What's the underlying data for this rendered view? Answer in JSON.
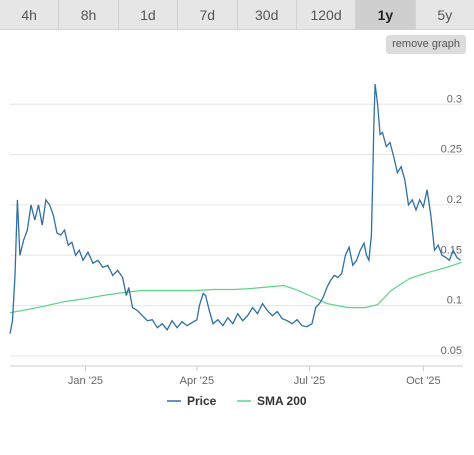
{
  "tabs": {
    "items": [
      {
        "label": "4h"
      },
      {
        "label": "8h"
      },
      {
        "label": "1d"
      },
      {
        "label": "7d"
      },
      {
        "label": "30d"
      },
      {
        "label": "120d"
      },
      {
        "label": "1y"
      },
      {
        "label": "5y"
      }
    ],
    "active": "1y"
  },
  "remove_graph_label": "remove graph",
  "colors": {
    "price": "#2f6fa5",
    "sma": "#5ed38a"
  },
  "chart_data": {
    "type": "line",
    "ylim": [
      0.04,
      0.34
    ],
    "yticks": [
      0.05,
      0.1,
      0.15,
      0.2,
      0.25,
      0.3
    ],
    "ytick_labels": [
      "0.05",
      "0.1",
      "0.15",
      "0.2",
      "0.25",
      "0.3"
    ],
    "xlim": [
      "2024-11-01",
      "2025-11-02"
    ],
    "xticks": [
      {
        "date": "2025-01-01",
        "label": "Jan '25"
      },
      {
        "date": "2025-04-01",
        "label": "Apr '25"
      },
      {
        "date": "2025-07-01",
        "label": "Jul '25"
      },
      {
        "date": "2025-10-01",
        "label": "Oct '25"
      }
    ],
    "grid": true,
    "legend": "bottom",
    "series": [
      {
        "name": "Price",
        "points": [
          [
            "2024-11-01",
            0.072
          ],
          [
            "2024-11-03",
            0.085
          ],
          [
            "2024-11-05",
            0.13
          ],
          [
            "2024-11-07",
            0.205
          ],
          [
            "2024-11-09",
            0.15
          ],
          [
            "2024-11-12",
            0.165
          ],
          [
            "2024-11-15",
            0.175
          ],
          [
            "2024-11-18",
            0.2
          ],
          [
            "2024-11-21",
            0.185
          ],
          [
            "2024-11-24",
            0.2
          ],
          [
            "2024-11-27",
            0.18
          ],
          [
            "2024-11-30",
            0.205
          ],
          [
            "2024-12-03",
            0.2
          ],
          [
            "2024-12-06",
            0.19
          ],
          [
            "2024-12-09",
            0.172
          ],
          [
            "2024-12-12",
            0.17
          ],
          [
            "2024-12-15",
            0.175
          ],
          [
            "2024-12-18",
            0.16
          ],
          [
            "2024-12-21",
            0.163
          ],
          [
            "2024-12-24",
            0.15
          ],
          [
            "2024-12-27",
            0.155
          ],
          [
            "2024-12-30",
            0.145
          ],
          [
            "2025-01-03",
            0.153
          ],
          [
            "2025-01-07",
            0.142
          ],
          [
            "2025-01-11",
            0.145
          ],
          [
            "2025-01-15",
            0.138
          ],
          [
            "2025-01-19",
            0.14
          ],
          [
            "2025-01-23",
            0.13
          ],
          [
            "2025-01-27",
            0.135
          ],
          [
            "2025-01-31",
            0.128
          ],
          [
            "2025-02-03",
            0.11
          ],
          [
            "2025-02-05",
            0.118
          ],
          [
            "2025-02-08",
            0.098
          ],
          [
            "2025-02-12",
            0.095
          ],
          [
            "2025-02-16",
            0.09
          ],
          [
            "2025-02-20",
            0.085
          ],
          [
            "2025-02-24",
            0.086
          ],
          [
            "2025-02-28",
            0.078
          ],
          [
            "2025-03-04",
            0.082
          ],
          [
            "2025-03-08",
            0.076
          ],
          [
            "2025-03-12",
            0.085
          ],
          [
            "2025-03-16",
            0.078
          ],
          [
            "2025-03-20",
            0.084
          ],
          [
            "2025-03-24",
            0.08
          ],
          [
            "2025-03-28",
            0.083
          ],
          [
            "2025-04-01",
            0.086
          ],
          [
            "2025-04-03",
            0.1
          ],
          [
            "2025-04-06",
            0.112
          ],
          [
            "2025-04-08",
            0.11
          ],
          [
            "2025-04-11",
            0.095
          ],
          [
            "2025-04-14",
            0.082
          ],
          [
            "2025-04-18",
            0.086
          ],
          [
            "2025-04-22",
            0.08
          ],
          [
            "2025-04-26",
            0.088
          ],
          [
            "2025-04-30",
            0.082
          ],
          [
            "2025-05-04",
            0.092
          ],
          [
            "2025-05-08",
            0.085
          ],
          [
            "2025-05-12",
            0.09
          ],
          [
            "2025-05-16",
            0.098
          ],
          [
            "2025-05-20",
            0.092
          ],
          [
            "2025-05-24",
            0.102
          ],
          [
            "2025-05-28",
            0.095
          ],
          [
            "2025-06-01",
            0.09
          ],
          [
            "2025-06-05",
            0.094
          ],
          [
            "2025-06-09",
            0.087
          ],
          [
            "2025-06-13",
            0.085
          ],
          [
            "2025-06-17",
            0.082
          ],
          [
            "2025-06-21",
            0.086
          ],
          [
            "2025-06-25",
            0.08
          ],
          [
            "2025-06-29",
            0.079
          ],
          [
            "2025-07-03",
            0.082
          ],
          [
            "2025-07-06",
            0.098
          ],
          [
            "2025-07-09",
            0.102
          ],
          [
            "2025-07-12",
            0.108
          ],
          [
            "2025-07-15",
            0.118
          ],
          [
            "2025-07-18",
            0.125
          ],
          [
            "2025-07-21",
            0.13
          ],
          [
            "2025-07-24",
            0.128
          ],
          [
            "2025-07-27",
            0.132
          ],
          [
            "2025-07-30",
            0.15
          ],
          [
            "2025-08-02",
            0.158
          ],
          [
            "2025-08-05",
            0.14
          ],
          [
            "2025-08-08",
            0.145
          ],
          [
            "2025-08-11",
            0.155
          ],
          [
            "2025-08-14",
            0.162
          ],
          [
            "2025-08-16",
            0.15
          ],
          [
            "2025-08-18",
            0.145
          ],
          [
            "2025-08-20",
            0.17
          ],
          [
            "2025-08-21",
            0.22
          ],
          [
            "2025-08-22",
            0.282
          ],
          [
            "2025-08-23",
            0.32
          ],
          [
            "2025-08-25",
            0.3
          ],
          [
            "2025-08-27",
            0.27
          ],
          [
            "2025-08-29",
            0.272
          ],
          [
            "2025-09-01",
            0.258
          ],
          [
            "2025-09-04",
            0.262
          ],
          [
            "2025-09-07",
            0.248
          ],
          [
            "2025-09-10",
            0.232
          ],
          [
            "2025-09-13",
            0.238
          ],
          [
            "2025-09-16",
            0.225
          ],
          [
            "2025-09-19",
            0.2
          ],
          [
            "2025-09-22",
            0.205
          ],
          [
            "2025-09-25",
            0.195
          ],
          [
            "2025-09-28",
            0.205
          ],
          [
            "2025-10-01",
            0.198
          ],
          [
            "2025-10-04",
            0.215
          ],
          [
            "2025-10-07",
            0.19
          ],
          [
            "2025-10-10",
            0.155
          ],
          [
            "2025-10-13",
            0.16
          ],
          [
            "2025-10-16",
            0.15
          ],
          [
            "2025-10-19",
            0.148
          ],
          [
            "2025-10-22",
            0.145
          ],
          [
            "2025-10-25",
            0.155
          ],
          [
            "2025-10-28",
            0.148
          ],
          [
            "2025-10-31",
            0.145
          ]
        ]
      },
      {
        "name": "SMA 200",
        "points": [
          [
            "2024-11-01",
            0.093
          ],
          [
            "2024-11-15",
            0.096
          ],
          [
            "2024-12-01",
            0.1
          ],
          [
            "2024-12-15",
            0.104
          ],
          [
            "2025-01-01",
            0.107
          ],
          [
            "2025-01-15",
            0.11
          ],
          [
            "2025-02-01",
            0.113
          ],
          [
            "2025-02-15",
            0.115
          ],
          [
            "2025-03-01",
            0.115
          ],
          [
            "2025-03-15",
            0.115
          ],
          [
            "2025-04-01",
            0.115
          ],
          [
            "2025-04-15",
            0.116
          ],
          [
            "2025-05-01",
            0.116
          ],
          [
            "2025-05-15",
            0.117
          ],
          [
            "2025-06-01",
            0.119
          ],
          [
            "2025-06-10",
            0.12
          ],
          [
            "2025-06-20",
            0.116
          ],
          [
            "2025-07-01",
            0.11
          ],
          [
            "2025-07-15",
            0.102
          ],
          [
            "2025-08-01",
            0.098
          ],
          [
            "2025-08-15",
            0.098
          ],
          [
            "2025-08-25",
            0.101
          ],
          [
            "2025-09-05",
            0.115
          ],
          [
            "2025-09-20",
            0.127
          ],
          [
            "2025-10-05",
            0.133
          ],
          [
            "2025-10-20",
            0.138
          ],
          [
            "2025-11-01",
            0.143
          ]
        ]
      }
    ]
  }
}
